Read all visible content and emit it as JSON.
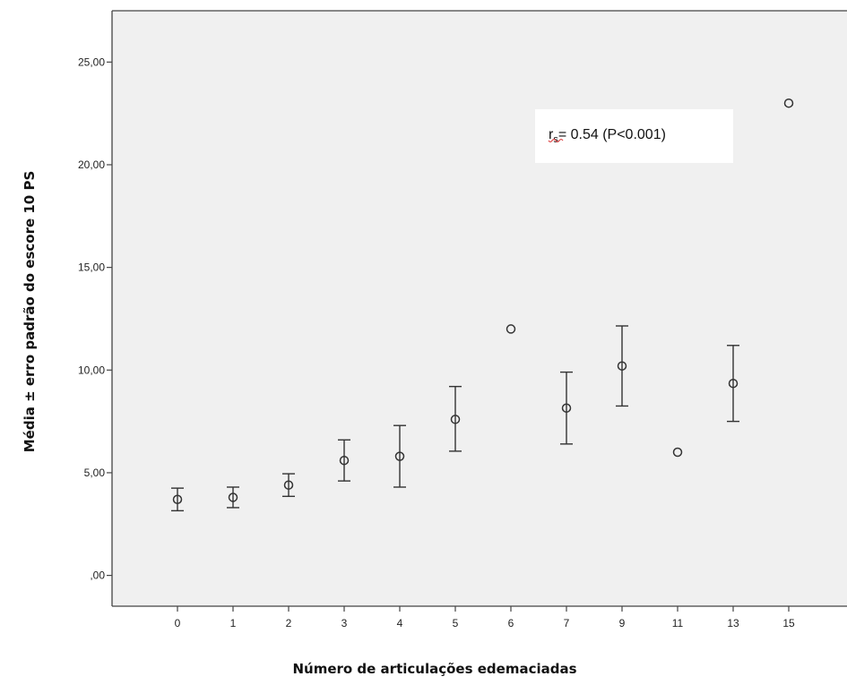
{
  "chart_data": {
    "type": "scatter",
    "subtype": "error-bar",
    "title": "",
    "xlabel": "Número de articulações edemaciadas",
    "ylabel": "Média ± erro padrão do escore 10 PS",
    "categories": [
      "0",
      "1",
      "2",
      "3",
      "4",
      "5",
      "6",
      "7",
      "9",
      "11",
      "13",
      "15"
    ],
    "means": [
      3.7,
      3.8,
      4.4,
      5.6,
      5.8,
      7.6,
      12.0,
      8.15,
      10.2,
      6.0,
      9.35,
      23.0
    ],
    "lower": [
      3.15,
      3.3,
      3.85,
      4.6,
      4.3,
      6.05,
      null,
      6.4,
      8.25,
      null,
      7.5,
      null
    ],
    "upper": [
      4.25,
      4.3,
      4.95,
      6.6,
      7.3,
      9.2,
      null,
      9.9,
      12.15,
      null,
      11.2,
      null
    ],
    "ylim": [
      -1.5,
      27.5
    ],
    "yticks": [
      0,
      5,
      10,
      15,
      20,
      25
    ],
    "ytick_labels": [
      ",00",
      "5,00",
      "10,00",
      "15,00",
      "20,00",
      "25,00"
    ],
    "grid": false,
    "colors": {
      "plot_background": "#f0f0f0",
      "marker": "#333333",
      "axis": "#444444",
      "annotation_underline": "#e05050"
    }
  },
  "annotation": {
    "r_main": "r",
    "r_sub": "s",
    "rest": "= 0.54 (P<0.001)"
  }
}
